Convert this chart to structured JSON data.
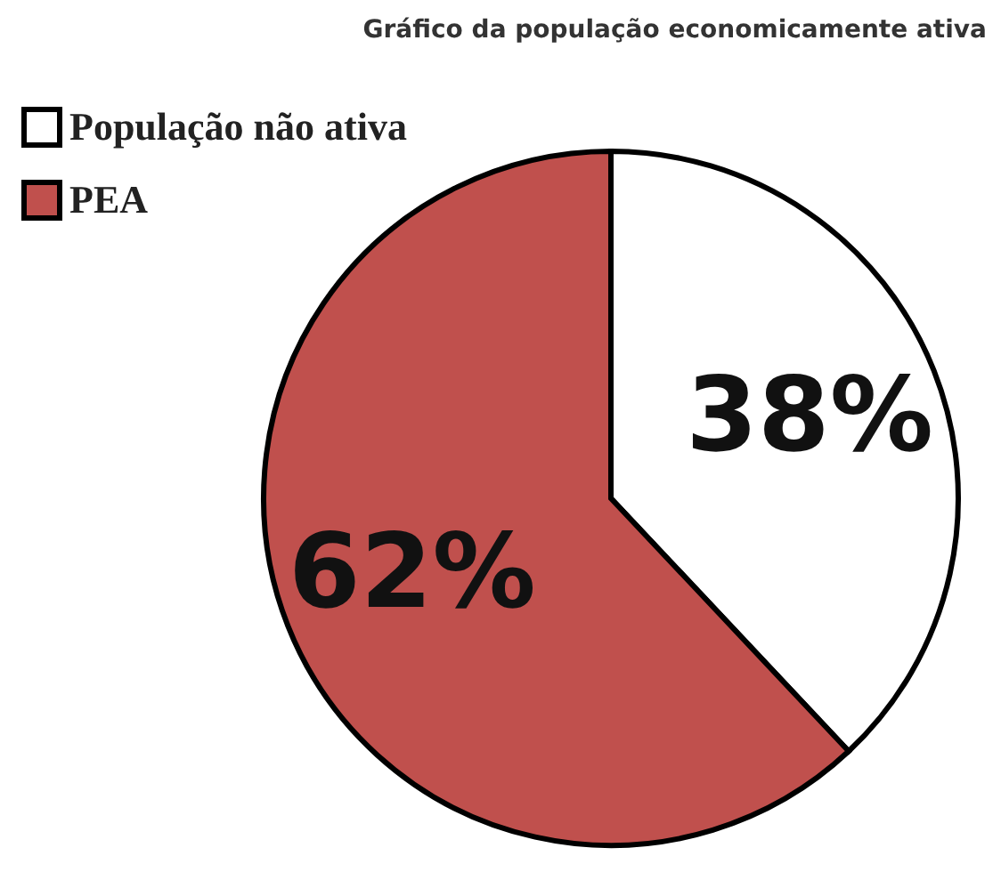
{
  "chart_data": {
    "type": "pie",
    "title": "Gráfico da população economicamente ativa",
    "categories": [
      "População não ativa",
      "PEA"
    ],
    "values": [
      38,
      62
    ],
    "colors": [
      "#ffffff",
      "#c0504d"
    ],
    "value_labels": [
      "38%",
      "62%"
    ],
    "legend": "top left"
  }
}
